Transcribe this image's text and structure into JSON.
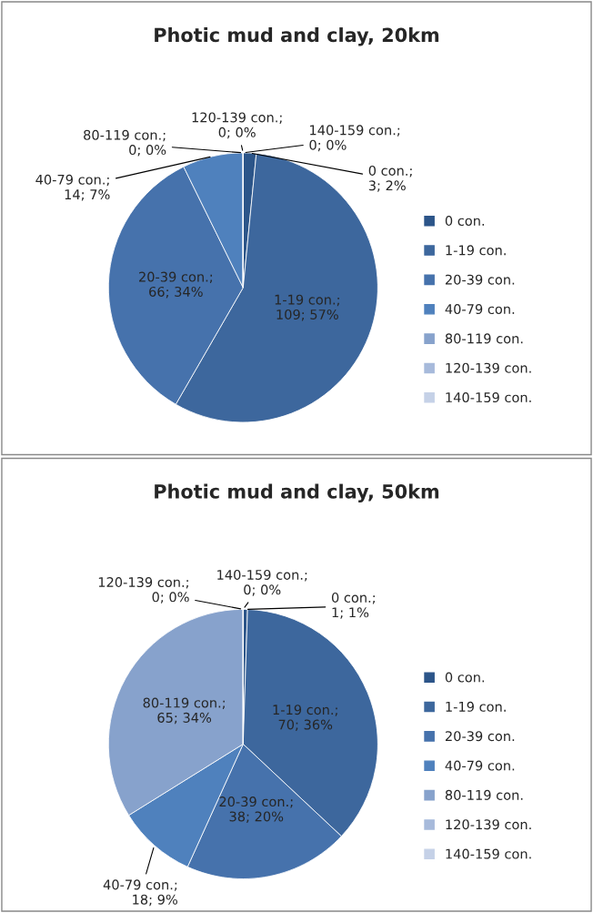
{
  "chart_data": [
    {
      "type": "pie",
      "title": "Photic mud and clay, 20km",
      "categories": [
        "0 con.",
        "1-19 con.",
        "20-39 con.",
        "40-79 con.",
        "80-119 con.",
        "120-139 con.",
        "140-159 con."
      ],
      "values": [
        3,
        109,
        66,
        14,
        0,
        0,
        0
      ],
      "colors": [
        "#2c5589",
        "#3d679d",
        "#4672ac",
        "#4f81bd",
        "#87a2cc",
        "#a7badb",
        "#c5d1e7"
      ],
      "value_labels": [
        "0 con.; 3; 2%",
        "1-19 con.; 109; 57%",
        "20-39 con.; 66; 34%",
        "40-79 con.; 14; 7%",
        "80-119 con.; 0; 0%",
        "120-139 con.; 0; 0%",
        "140-159 con.; 0; 0%"
      ],
      "legend": "right"
    },
    {
      "type": "pie",
      "title": "Photic mud and clay, 50km",
      "categories": [
        "0 con.",
        "1-19 con.",
        "20-39 con.",
        "40-79 con.",
        "80-119 con.",
        "120-139 con.",
        "140-159 con."
      ],
      "values": [
        1,
        70,
        38,
        18,
        65,
        0,
        0
      ],
      "colors": [
        "#2c5589",
        "#3d679d",
        "#4672ac",
        "#4f81bd",
        "#87a2cc",
        "#a7badb",
        "#c5d1e7"
      ],
      "value_labels": [
        "0 con.; 1; 1%",
        "1-19 con.; 70; 36%",
        "20-39 con.; 38; 20%",
        "40-79 con.; 18; 9%",
        "80-119 con.; 65; 34%",
        "120-139 con.; 0; 0%",
        "140-159 con.; 0; 0%"
      ],
      "legend": "right"
    }
  ]
}
